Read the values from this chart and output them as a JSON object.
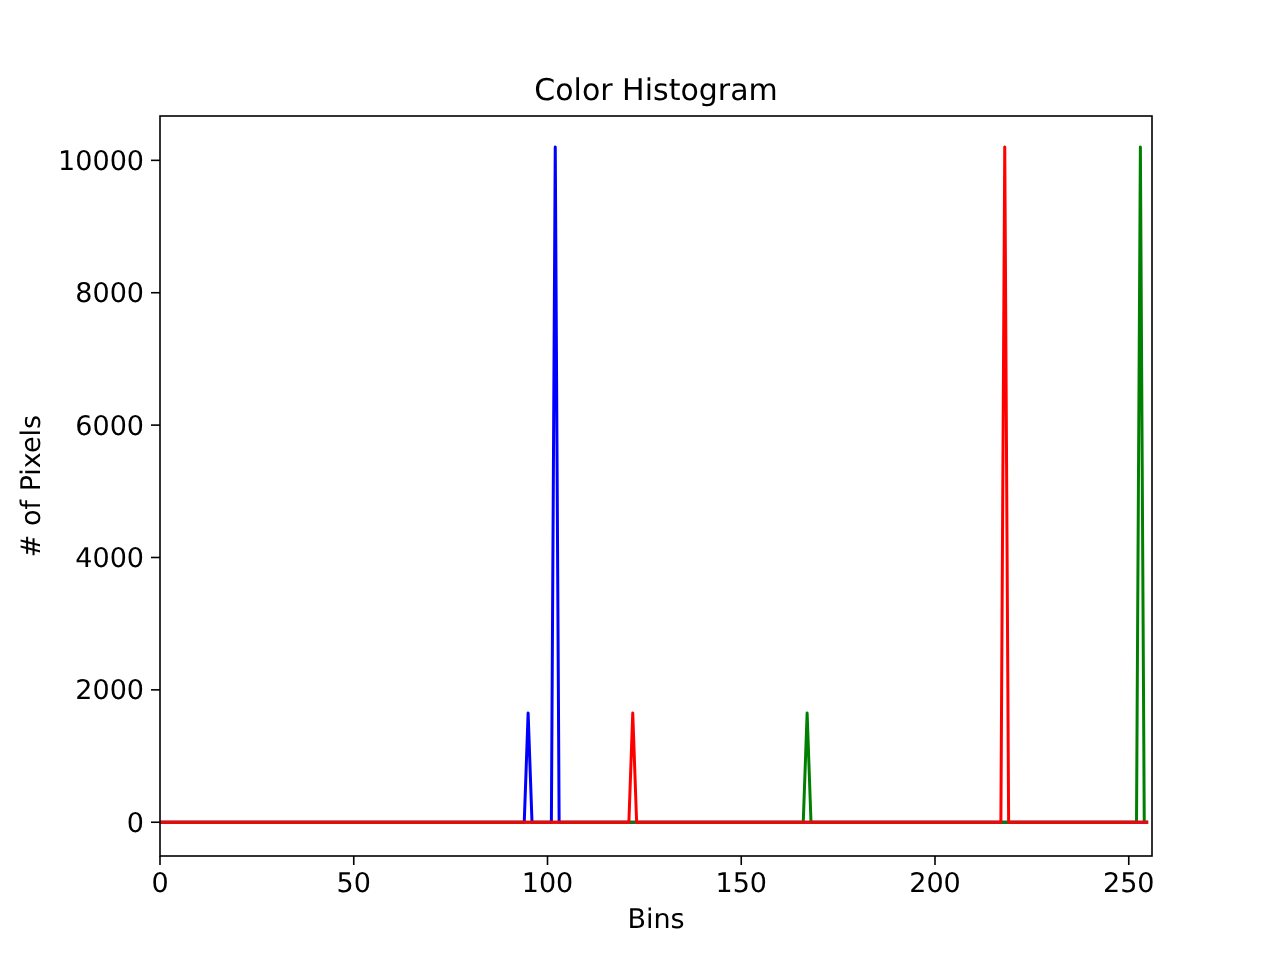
{
  "chart_data": {
    "type": "line",
    "title": "Color Histogram",
    "xlabel": "Bins",
    "ylabel": "# of Pixels",
    "xlim": [
      0,
      256
    ],
    "ylim": [
      -510,
      10670
    ],
    "xticks": [
      0,
      50,
      100,
      150,
      200,
      250
    ],
    "yticks": [
      0,
      2000,
      4000,
      6000,
      8000,
      10000
    ],
    "grid": false,
    "marker": "none",
    "line_style": "solid",
    "series": [
      {
        "color": "#0000ff",
        "x": [
          0,
          94,
          95,
          96,
          101,
          102,
          103,
          255
        ],
        "values": [
          0,
          0,
          1650,
          0,
          0,
          10200,
          0,
          0
        ]
      },
      {
        "color": "#008000",
        "x": [
          0,
          166,
          167,
          168,
          252,
          253,
          254,
          255
        ],
        "values": [
          0,
          0,
          1650,
          0,
          0,
          10200,
          0,
          0
        ]
      },
      {
        "color": "#ff0000",
        "x": [
          0,
          121,
          122,
          123,
          217,
          218,
          219,
          255
        ],
        "values": [
          0,
          0,
          1650,
          0,
          0,
          10200,
          0,
          0
        ]
      }
    ]
  }
}
